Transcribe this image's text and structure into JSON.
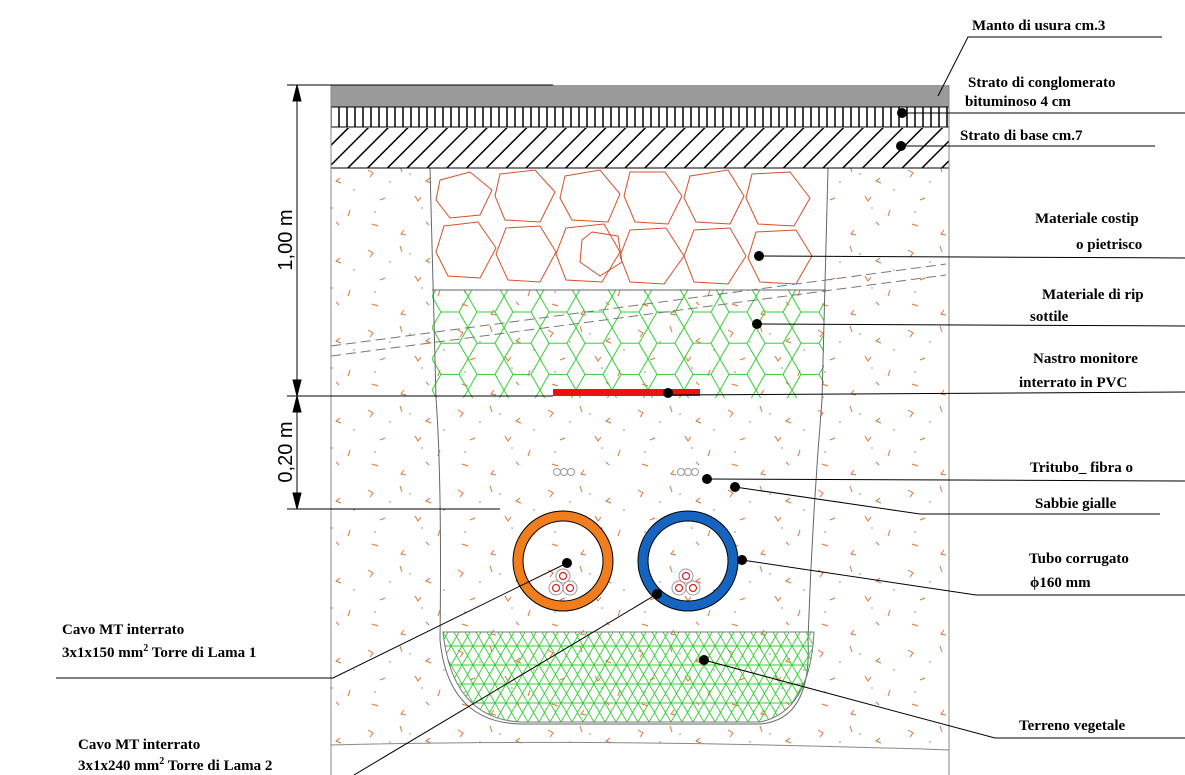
{
  "dimensions": {
    "top_depth": "1,00 m",
    "bottom_depth": "0,20 m"
  },
  "labels": {
    "manto": "Manto di usura cm.3",
    "conglomerato_1": "Strato di conglomerato",
    "conglomerato_2": "bituminoso 4 cm",
    "base": "Strato di base cm.7",
    "costipato_1": "Materiale costip",
    "costipato_2": "o pietrisco",
    "riporto_1": "Materiale di rip",
    "riporto_2": "sottile",
    "nastro_1": "Nastro monitore",
    "nastro_2": "interrato in PVC",
    "tritubo": "Tritubo_ fibra o",
    "sabbie": "Sabbie gialle",
    "tubo_1": "Tubo corrugato",
    "tubo_2": "ϕ160 mm",
    "terreno": "Terreno vegetale",
    "cavo1_1": "Cavo MT interrato",
    "cavo1_2a": "3x1x150 mm",
    "cavo1_sup": "2",
    "cavo1_2b": " Torre di Lama 1",
    "cavo2_1": "Cavo MT interrato",
    "cavo2_2a": "3x1x240 mm",
    "cavo2_sup": "2",
    "cavo2_2b": " Torre di Lama 2"
  },
  "colors": {
    "pipe_orange": "#f07d1e",
    "pipe_blue": "#1565c0",
    "cobble_stroke": "#d4502a",
    "hex_green": "#33cc33",
    "tri_green": "#33cc33",
    "tape_red": "#ee1111",
    "speckle": "#e07030",
    "asphalt": "#9a9a9a"
  }
}
